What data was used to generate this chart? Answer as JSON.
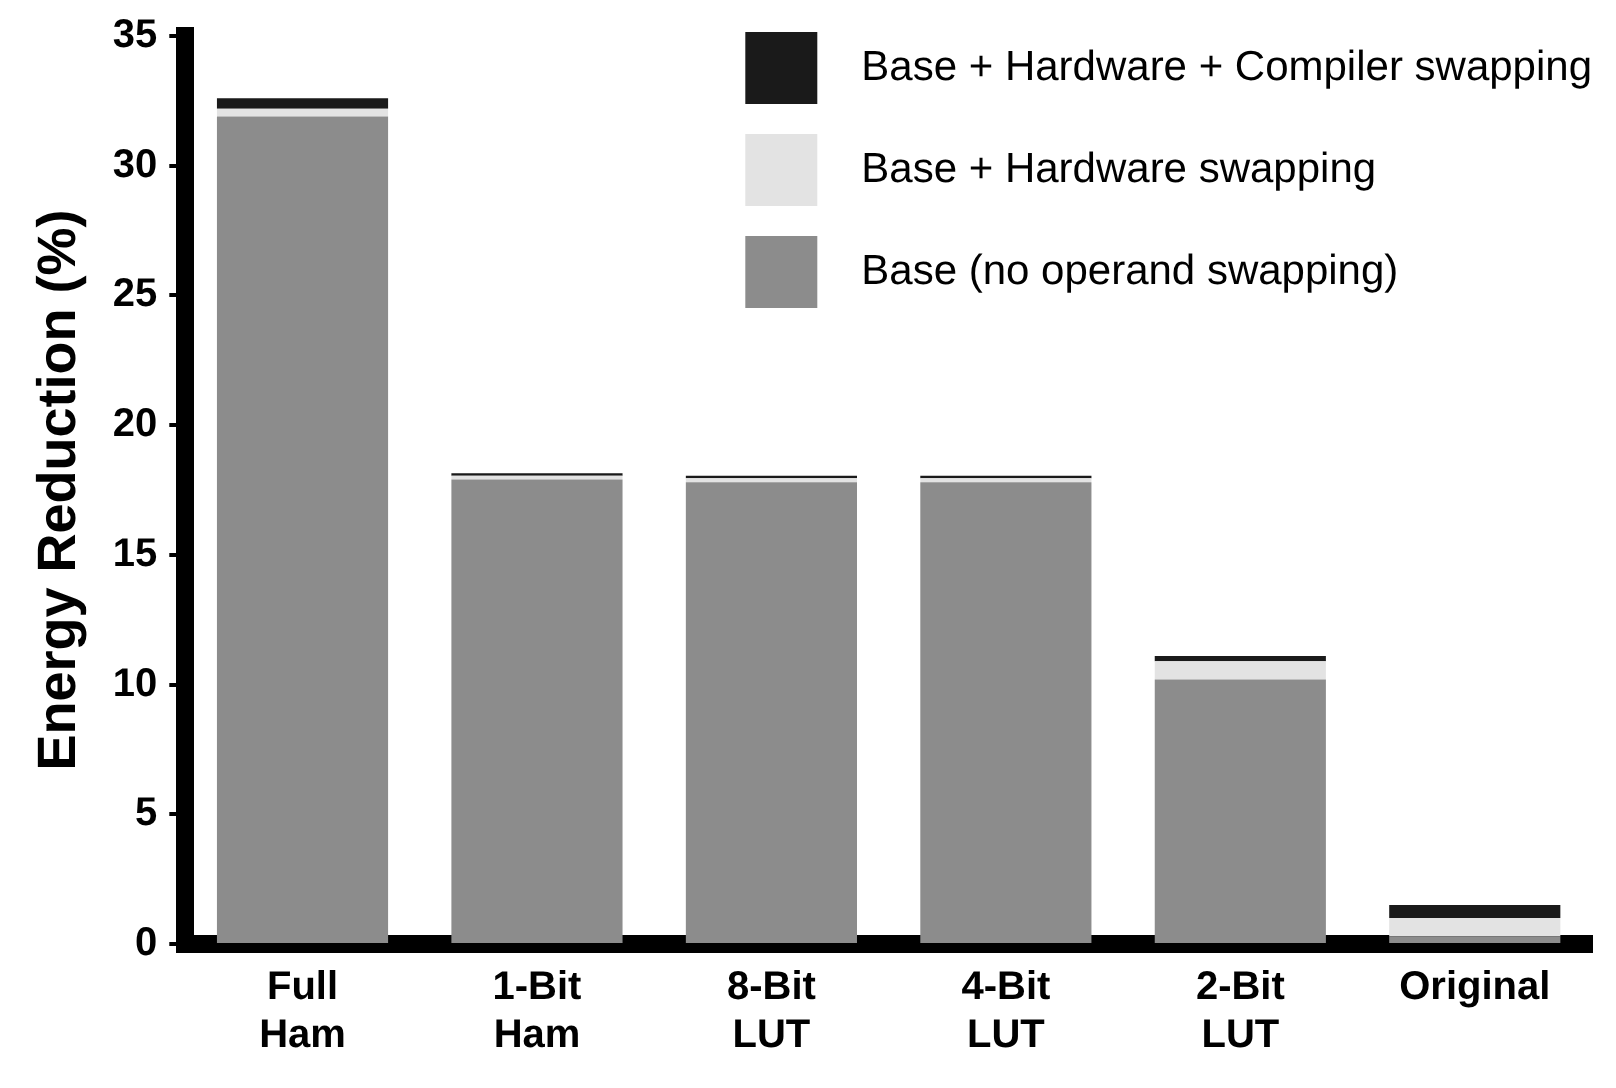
{
  "chart_data": {
    "type": "bar",
    "stacked": true,
    "ylabel": "Energy Reduction (%)",
    "categories": [
      "Full Ham",
      "1-Bit Ham",
      "8-Bit LUT",
      "4-Bit LUT",
      "2-Bit LUT",
      "Original"
    ],
    "series": [
      {
        "name": "Base (no operand swapping)",
        "color": "#8c8c8c",
        "values": [
          31.9,
          17.9,
          17.8,
          17.8,
          10.2,
          0.3
        ]
      },
      {
        "name": "Base + Hardware swapping",
        "color": "#e3e3e3",
        "values": [
          0.3,
          0.15,
          0.15,
          0.15,
          0.7,
          0.7
        ]
      },
      {
        "name": "Base + Hardware + Compiler swapping",
        "color": "#1a1a1a",
        "values": [
          0.4,
          0.1,
          0.1,
          0.1,
          0.2,
          0.5
        ]
      }
    ],
    "ylim": [
      0,
      35
    ],
    "yticks": [
      0,
      5,
      10,
      15,
      20,
      25,
      30,
      35
    ],
    "grid": false,
    "legend": "top right"
  }
}
